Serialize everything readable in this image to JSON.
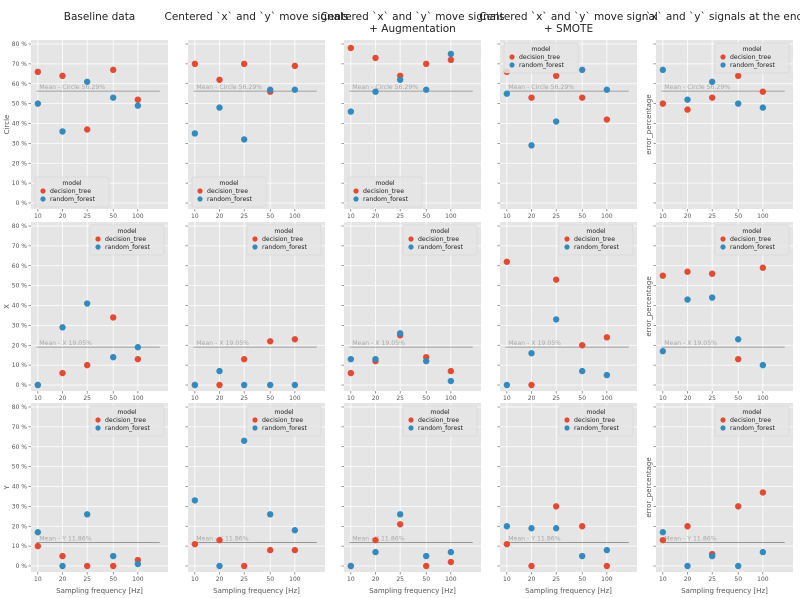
{
  "chart_data": {
    "type": "scatter",
    "columns": [
      {
        "title": "Baseline data"
      },
      {
        "title": "Centered `x` and `y` move signals"
      },
      {
        "title": "Centered `x` and `y` move signals\n+ Augmentation"
      },
      {
        "title": "Centered `x` and `y` move signal\n+ SMOTE"
      },
      {
        "title": "`x` and `y` signals at the end"
      }
    ],
    "rows": [
      {
        "ylabel": "Circle",
        "mean_label": "Mean - Circle 56.29%",
        "mean": 56.29
      },
      {
        "ylabel": "X",
        "mean_label": "Mean - X 19.05%",
        "mean": 19.05
      },
      {
        "ylabel": "Y",
        "mean_label": "Mean - Y 11.86%",
        "mean": 11.86
      }
    ],
    "x_categories": [
      "10",
      "20",
      "25",
      "50",
      "100"
    ],
    "xlabel": "Sampling frequency [Hz]",
    "alt_ylabel": "error_percentage",
    "y_ticks": [
      "0 %",
      "10 %",
      "20 %",
      "30 %",
      "40 %",
      "50 %",
      "60 %",
      "70 %",
      "80 %"
    ],
    "ylim": [
      0,
      80
    ],
    "legend_title": "model",
    "series": [
      {
        "name": "decision_tree",
        "color": "#E24A33"
      },
      {
        "name": "random_forest",
        "color": "#348ABD"
      }
    ],
    "grid": true,
    "panels": [
      {
        "row": 0,
        "col": 0,
        "legend": "bottom-left",
        "values": {
          "decision_tree": [
            66,
            64,
            37,
            67,
            52
          ],
          "random_forest": [
            50,
            36,
            61,
            53,
            49
          ]
        }
      },
      {
        "row": 0,
        "col": 1,
        "legend": "bottom-left",
        "values": {
          "decision_tree": [
            70,
            62,
            70,
            56,
            69
          ],
          "random_forest": [
            35,
            48,
            32,
            57,
            57
          ]
        }
      },
      {
        "row": 0,
        "col": 2,
        "legend": "bottom-left",
        "values": {
          "decision_tree": [
            78,
            73,
            64,
            70,
            72
          ],
          "random_forest": [
            46,
            56,
            62,
            57,
            75
          ]
        }
      },
      {
        "row": 0,
        "col": 3,
        "legend": "top-left",
        "values": {
          "decision_tree": [
            66,
            53,
            64,
            53,
            42
          ],
          "random_forest": [
            55,
            29,
            41,
            67,
            57
          ]
        }
      },
      {
        "row": 0,
        "col": 4,
        "legend": "top-right",
        "values": {
          "decision_tree": [
            50,
            47,
            53,
            64,
            56
          ],
          "random_forest": [
            67,
            52,
            61,
            50,
            48
          ]
        }
      },
      {
        "row": 1,
        "col": 0,
        "legend": "top-right",
        "values": {
          "decision_tree": [
            0,
            6,
            10,
            34,
            13
          ],
          "random_forest": [
            0,
            29,
            41,
            14,
            19
          ]
        }
      },
      {
        "row": 1,
        "col": 1,
        "legend": "top-right",
        "values": {
          "decision_tree": [
            0,
            0,
            13,
            22,
            23
          ],
          "random_forest": [
            0,
            7,
            0,
            0,
            0
          ]
        }
      },
      {
        "row": 1,
        "col": 2,
        "legend": "top-right",
        "values": {
          "decision_tree": [
            6,
            12,
            25,
            14,
            7
          ],
          "random_forest": [
            13,
            13,
            26,
            12,
            2
          ]
        }
      },
      {
        "row": 1,
        "col": 3,
        "legend": "top-right",
        "values": {
          "decision_tree": [
            62,
            0,
            53,
            20,
            24
          ],
          "random_forest": [
            0,
            16,
            33,
            7,
            5
          ]
        }
      },
      {
        "row": 1,
        "col": 4,
        "legend": "top-right",
        "values": {
          "decision_tree": [
            55,
            57,
            56,
            13,
            59
          ],
          "random_forest": [
            17,
            43,
            44,
            23,
            10
          ]
        }
      },
      {
        "row": 2,
        "col": 0,
        "legend": "top-right",
        "values": {
          "decision_tree": [
            10,
            5,
            0,
            0,
            3
          ],
          "random_forest": [
            17,
            0,
            26,
            5,
            1
          ]
        }
      },
      {
        "row": 2,
        "col": 1,
        "legend": "top-right",
        "values": {
          "decision_tree": [
            11,
            13,
            0,
            8,
            8
          ],
          "random_forest": [
            33,
            0,
            63,
            26,
            18
          ]
        }
      },
      {
        "row": 2,
        "col": 2,
        "legend": "top-right",
        "values": {
          "decision_tree": [
            0,
            13,
            21,
            0,
            2
          ],
          "random_forest": [
            0,
            7,
            26,
            5,
            7
          ]
        }
      },
      {
        "row": 2,
        "col": 3,
        "legend": "top-right",
        "values": {
          "decision_tree": [
            11,
            0,
            30,
            20,
            0
          ],
          "random_forest": [
            20,
            19,
            19,
            5,
            8
          ]
        }
      },
      {
        "row": 2,
        "col": 4,
        "legend": "top-right",
        "values": {
          "decision_tree": [
            13,
            20,
            6,
            30,
            37
          ],
          "random_forest": [
            17,
            0,
            5,
            0,
            7
          ]
        }
      }
    ]
  }
}
